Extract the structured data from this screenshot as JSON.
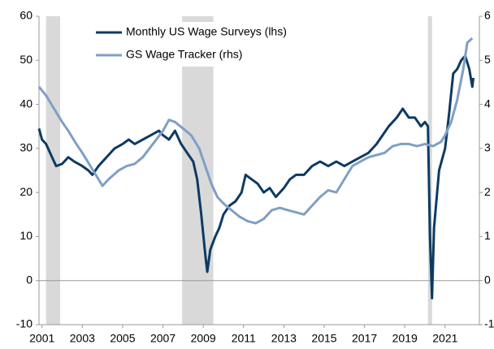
{
  "chart_data": {
    "type": "line",
    "xlim": [
      2000.85,
      2022.7
    ],
    "xticks": [
      2001,
      2003,
      2005,
      2007,
      2009,
      2011,
      2013,
      2015,
      2017,
      2019,
      2021
    ],
    "ylim": [
      -10,
      60
    ],
    "yticks": [
      -10,
      0,
      10,
      20,
      30,
      40,
      50,
      60
    ],
    "y2lim": [
      -1,
      6
    ],
    "y2ticks": [
      -1,
      0,
      1,
      2,
      3,
      4,
      5,
      6
    ],
    "shaded_periods": [
      [
        2001.2,
        2001.9
      ],
      [
        2007.95,
        2009.5
      ],
      [
        2020.15,
        2020.35
      ]
    ],
    "shade_color": "#d9d9d9",
    "series": [
      {
        "name": "Monthly US Wage Surveys (lhs)",
        "color": "#0d3a63",
        "axis": "y",
        "x": [
          2000.85,
          2001.0,
          2001.2,
          2001.5,
          2001.7,
          2002.0,
          2002.3,
          2002.6,
          2003.0,
          2003.3,
          2003.5,
          2003.8,
          2004.2,
          2004.6,
          2005.0,
          2005.3,
          2005.6,
          2006.0,
          2006.4,
          2006.8,
          2007.0,
          2007.3,
          2007.6,
          2007.9,
          2008.2,
          2008.5,
          2008.7,
          2008.9,
          2009.1,
          2009.2,
          2009.35,
          2009.6,
          2009.8,
          2010.0,
          2010.3,
          2010.6,
          2010.9,
          2011.1,
          2011.4,
          2011.7,
          2012.0,
          2012.3,
          2012.6,
          2013.0,
          2013.3,
          2013.6,
          2014.0,
          2014.4,
          2014.8,
          2015.2,
          2015.6,
          2016.0,
          2016.4,
          2016.8,
          2017.2,
          2017.6,
          2017.9,
          2018.2,
          2018.6,
          2018.9,
          2019.2,
          2019.5,
          2019.8,
          2020.0,
          2020.15,
          2020.25,
          2020.35,
          2020.45,
          2020.7,
          2021.0,
          2021.2,
          2021.4,
          2021.6,
          2021.8,
          2022.0,
          2022.2,
          2022.35,
          2022.4
        ],
        "values": [
          34.5,
          32,
          31,
          28,
          26,
          26.5,
          28,
          27,
          26,
          25,
          24,
          26,
          28,
          30,
          31,
          32,
          31,
          32,
          33,
          34,
          33,
          32,
          34,
          31,
          29,
          27,
          23,
          15,
          6,
          2,
          7,
          10,
          12,
          15,
          17,
          18,
          20,
          24,
          23,
          22,
          20,
          21,
          19,
          21,
          23,
          24,
          24,
          26,
          27,
          26,
          27,
          26,
          27,
          28,
          29,
          31,
          33,
          35,
          37,
          39,
          37,
          37,
          35,
          36,
          35,
          10,
          -4,
          12,
          25,
          30,
          38,
          47,
          48,
          50,
          51,
          48,
          44,
          46
        ]
      },
      {
        "name": "GS Wage Tracker (rhs)",
        "color": "#7f9fc4",
        "axis": "y2",
        "x": [
          2000.85,
          2001.2,
          2001.6,
          2002.0,
          2002.3,
          2002.7,
          2003.0,
          2003.4,
          2003.8,
          2004.0,
          2004.3,
          2004.8,
          2005.2,
          2005.6,
          2006.0,
          2006.5,
          2007.0,
          2007.3,
          2007.6,
          2008.0,
          2008.4,
          2008.8,
          2009.1,
          2009.4,
          2009.7,
          2010.0,
          2010.4,
          2010.8,
          2011.2,
          2011.6,
          2012.0,
          2012.4,
          2012.8,
          2013.2,
          2013.6,
          2014.0,
          2014.4,
          2014.8,
          2015.2,
          2015.6,
          2016.0,
          2016.4,
          2016.8,
          2017.2,
          2017.6,
          2018.0,
          2018.4,
          2018.8,
          2019.2,
          2019.6,
          2020.0,
          2020.4,
          2020.8,
          2021.0,
          2021.3,
          2021.6,
          2021.9,
          2022.1,
          2022.35
        ],
        "values": [
          4.4,
          4.2,
          3.9,
          3.6,
          3.4,
          3.1,
          2.9,
          2.6,
          2.3,
          2.15,
          2.3,
          2.5,
          2.6,
          2.65,
          2.8,
          3.1,
          3.4,
          3.65,
          3.6,
          3.45,
          3.3,
          3.0,
          2.6,
          2.2,
          1.9,
          1.75,
          1.6,
          1.45,
          1.35,
          1.3,
          1.4,
          1.6,
          1.65,
          1.6,
          1.55,
          1.5,
          1.7,
          1.9,
          2.05,
          2.0,
          2.3,
          2.6,
          2.7,
          2.8,
          2.85,
          2.9,
          3.05,
          3.1,
          3.1,
          3.05,
          3.1,
          3.05,
          3.15,
          3.3,
          3.6,
          4.1,
          4.8,
          5.4,
          5.5
        ]
      }
    ]
  }
}
